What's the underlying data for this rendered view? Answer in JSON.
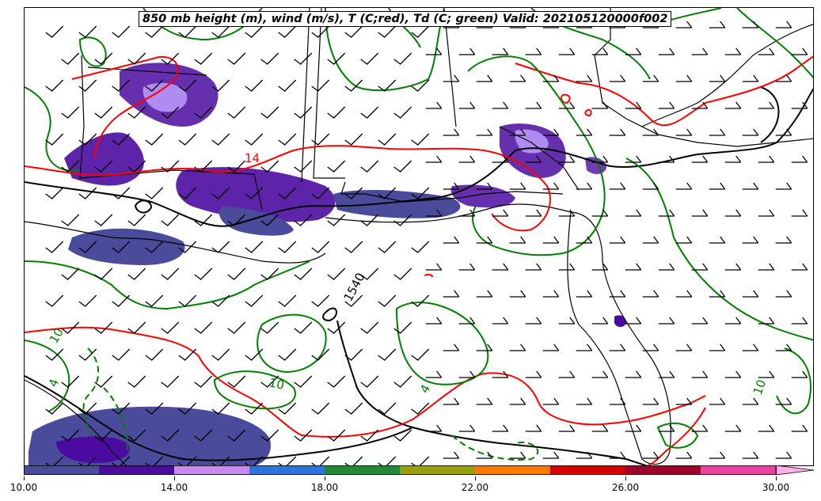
{
  "title": "850 mb height (m), wind (m/s), T (C;red), Td (C; green) Valid: 202105120000f002",
  "contour_labels": {
    "height_1540": "1540",
    "temp_14": "14",
    "temp_10": "10",
    "dew_10_a": "10",
    "dew_10_b": "10",
    "dew_10_c": "10",
    "dew_4": "4",
    "dew_4_b": "4"
  },
  "colors": {
    "temperature": "#ff0000",
    "dewpoint": "#008000",
    "height": "#000000",
    "shading_dark": "#4b0ba0",
    "shading_base": "#4b4b9c",
    "shading_light": "#b08cf0"
  },
  "colorbar": {
    "min": 10.0,
    "max": 30.0,
    "tick_labels": [
      "10.00",
      "14.00",
      "18.00",
      "22.00",
      "26.00",
      "30.00"
    ],
    "segments": [
      "#4b4b9c",
      "#4b0ba0",
      "#c88cf0",
      "#2f73e0",
      "#1f8a3a",
      "#9aa00a",
      "#ff7a00",
      "#d40000",
      "#a0002a",
      "#f040a0"
    ],
    "extend_color": "#ffb0e8"
  }
}
